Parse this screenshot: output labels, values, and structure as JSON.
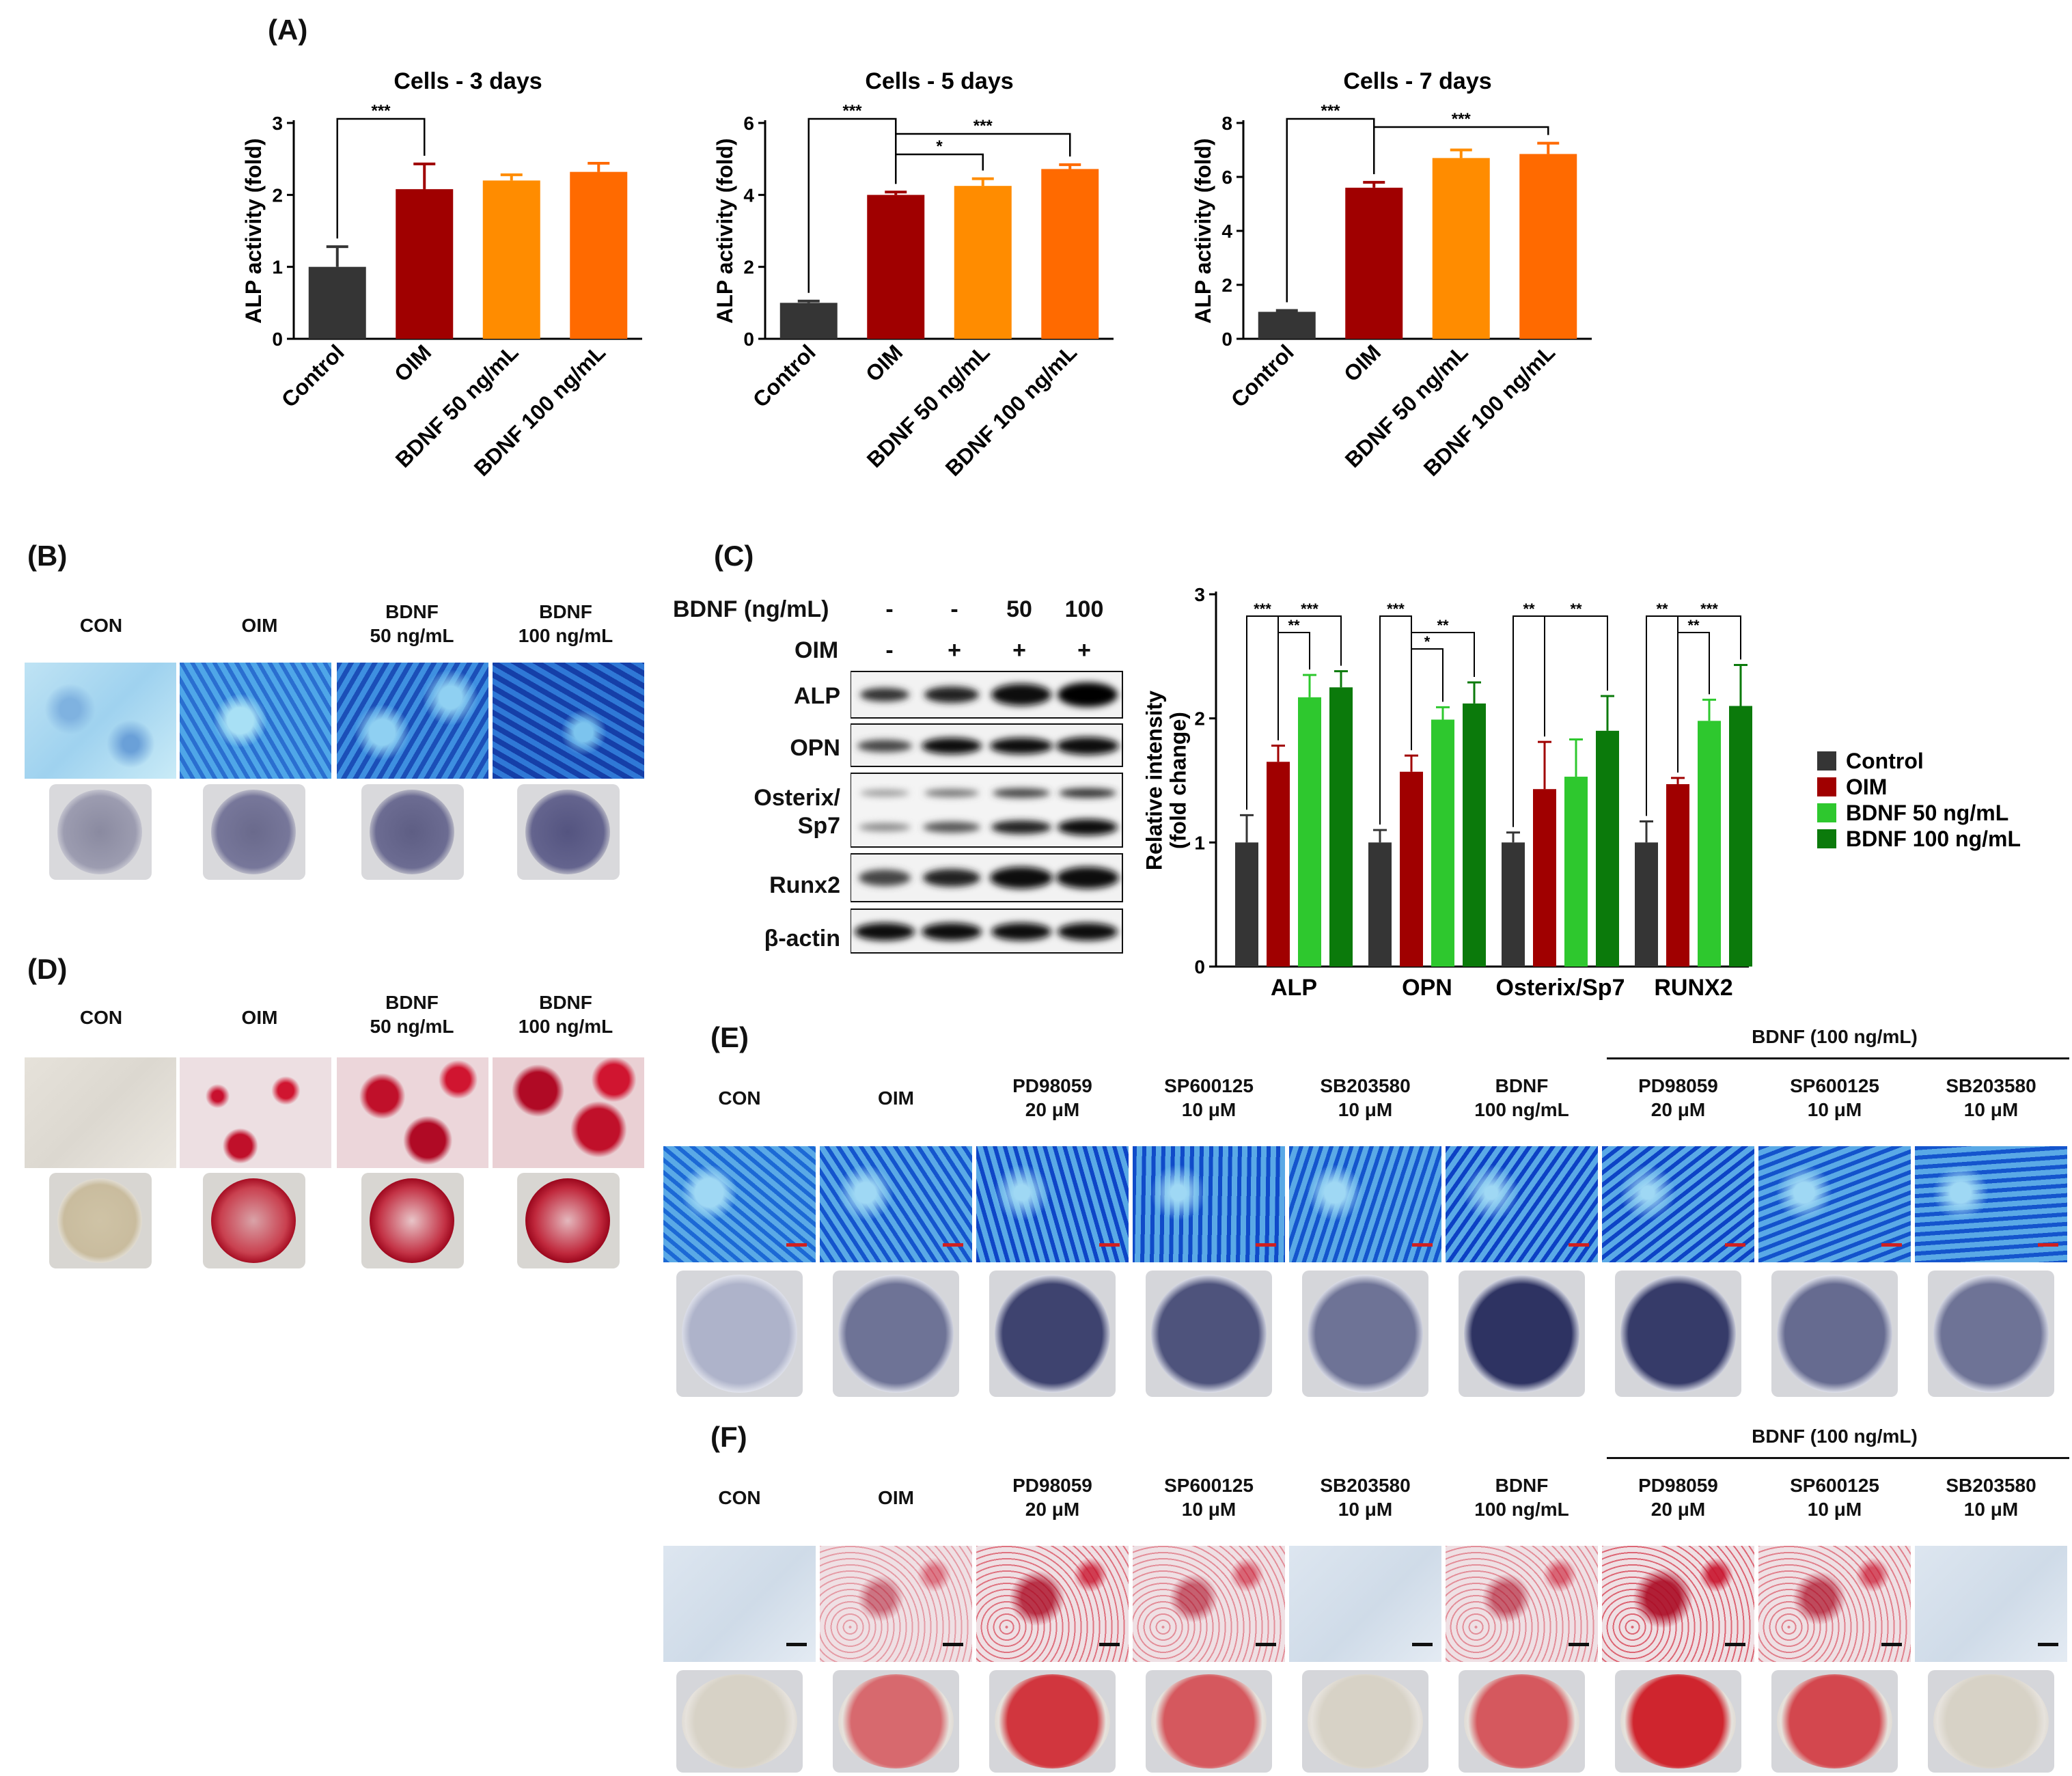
{
  "panel_labels": {
    "A": "(A)",
    "B": "(B)",
    "C": "(C)",
    "D": "(D)",
    "E": "(E)",
    "F": "(F)"
  },
  "colors": {
    "control": "#353535",
    "oim": "#a00000",
    "bdnf50": "#ff8c00",
    "bdnf100": "#ff6a00",
    "wb_bdnf50": "#2ec82e",
    "wb_bdnf100": "#0b7a0b",
    "alp_stain": "#2c5fcf",
    "ars_stain": "#c8102e"
  },
  "chart_data": [
    {
      "type": "bar",
      "title": "Cells - 3 days",
      "ylabel": "ALP activity (fold)",
      "categories": [
        "Control",
        "OIM",
        "BDNF 50 ng/mL",
        "BDNF 100 ng/mL"
      ],
      "values": [
        1.0,
        2.08,
        2.2,
        2.32
      ],
      "errors": [
        0.28,
        0.35,
        0.08,
        0.12
      ],
      "ylim": [
        0,
        3
      ],
      "yticks": [
        "0",
        "1",
        "2",
        "3"
      ],
      "annotations": [
        {
          "text": "***",
          "from": 0,
          "to": 1
        }
      ]
    },
    {
      "type": "bar",
      "title": "Cells - 5 days",
      "ylabel": "ALP activity (fold)",
      "categories": [
        "Control",
        "OIM",
        "BDNF 50 ng/mL",
        "BDNF 100 ng/mL"
      ],
      "values": [
        1.0,
        4.0,
        4.25,
        4.72
      ],
      "errors": [
        0.05,
        0.08,
        0.2,
        0.12
      ],
      "ylim": [
        0,
        6
      ],
      "yticks": [
        "0",
        "2",
        "4",
        "6"
      ],
      "annotations": [
        {
          "text": "***",
          "from": 0,
          "to": 1
        },
        {
          "text": "*",
          "from": 1,
          "to": 2
        },
        {
          "text": "***",
          "from": 1,
          "to": 3
        }
      ]
    },
    {
      "type": "bar",
      "title": "Cells - 7 days",
      "ylabel": "ALP activity (fold)",
      "categories": [
        "Control",
        "OIM",
        "BDNF 50 ng/mL",
        "BDNF 100 ng/mL"
      ],
      "values": [
        1.0,
        5.6,
        6.7,
        6.85
      ],
      "errors": [
        0.05,
        0.2,
        0.3,
        0.4
      ],
      "ylim": [
        0,
        8
      ],
      "yticks": [
        "0",
        "2",
        "4",
        "6",
        "8"
      ],
      "annotations": [
        {
          "text": "***",
          "from": 0,
          "to": 1
        },
        {
          "text": "***",
          "from": 1,
          "to": 3
        }
      ]
    },
    {
      "type": "bar",
      "ylabel": "Relative intensity (fold change)",
      "ylabel_lines": [
        "Relative intensity",
        "(fold change)"
      ],
      "categories": [
        "ALP",
        "OPN",
        "Osterix/Sp7",
        "RUNX2"
      ],
      "series": [
        {
          "name": "Control",
          "values": [
            1.0,
            1.0,
            1.0,
            1.0
          ],
          "errors": [
            0.22,
            0.1,
            0.08,
            0.17
          ]
        },
        {
          "name": "OIM",
          "values": [
            1.65,
            1.57,
            1.43,
            1.47
          ],
          "errors": [
            0.13,
            0.13,
            0.38,
            0.05
          ]
        },
        {
          "name": "BDNF 50 ng/mL",
          "values": [
            2.17,
            1.99,
            1.53,
            1.98
          ],
          "errors": [
            0.18,
            0.1,
            0.3,
            0.17
          ]
        },
        {
          "name": "BDNF 100 ng/mL",
          "values": [
            2.25,
            2.12,
            1.9,
            2.1
          ],
          "errors": [
            0.13,
            0.17,
            0.28,
            0.33
          ]
        }
      ],
      "ylim": [
        0,
        3
      ],
      "yticks": [
        "0",
        "1",
        "2",
        "3"
      ],
      "legend": "right",
      "annotations": [
        {
          "group": 0,
          "text": "***",
          "from": 0,
          "to": 1,
          "level": 0
        },
        {
          "group": 0,
          "text": "**",
          "from": 1,
          "to": 2,
          "level": 1
        },
        {
          "group": 0,
          "text": "***",
          "from": 1,
          "to": 3,
          "level": 0
        },
        {
          "group": 1,
          "text": "***",
          "from": 0,
          "to": 1,
          "level": 0
        },
        {
          "group": 1,
          "text": "*",
          "from": 1,
          "to": 2,
          "level": 2
        },
        {
          "group": 1,
          "text": "**",
          "from": 1,
          "to": 3,
          "level": 1
        },
        {
          "group": 2,
          "text": "**",
          "from": 0,
          "to": 1,
          "level": 0
        },
        {
          "group": 2,
          "text": "**",
          "from": 1,
          "to": 3,
          "level": 0
        },
        {
          "group": 3,
          "text": "**",
          "from": 0,
          "to": 1,
          "level": 0
        },
        {
          "group": 3,
          "text": "**",
          "from": 1,
          "to": 2,
          "level": 1
        },
        {
          "group": 3,
          "text": "***",
          "from": 1,
          "to": 3,
          "level": 0
        }
      ]
    }
  ],
  "panel_b": {
    "labels": [
      [
        "CON"
      ],
      [
        "OIM"
      ],
      [
        "BDNF",
        "50 ng/mL"
      ],
      [
        "BDNF",
        "100 ng/mL"
      ]
    ]
  },
  "panel_d": {
    "labels": [
      [
        "CON"
      ],
      [
        "OIM"
      ],
      [
        "BDNF",
        "50 ng/mL"
      ],
      [
        "BDNF",
        "100 ng/mL"
      ]
    ]
  },
  "panel_c_blot": {
    "treatment_rows": [
      {
        "label": "BDNF (ng/mL)",
        "values": [
          "-",
          "-",
          "50",
          "100"
        ]
      },
      {
        "label": "OIM",
        "values": [
          "-",
          "+",
          "+",
          "+"
        ]
      }
    ],
    "rows": [
      [
        "ALP"
      ],
      [
        "OPN"
      ],
      [
        "Osterix/",
        "Sp7"
      ],
      [
        "Runx2"
      ],
      [
        "β-actin"
      ]
    ]
  },
  "panel_ef": {
    "group_label": "BDNF (100 ng/mL)",
    "labels": [
      [
        "CON"
      ],
      [
        "OIM"
      ],
      [
        "PD98059",
        "20 μM"
      ],
      [
        "SP600125",
        "10 μM"
      ],
      [
        "SB203580",
        "10 μM"
      ],
      [
        "BDNF",
        "100 ng/mL"
      ],
      [
        "PD98059",
        "20 μM"
      ],
      [
        "SP600125",
        "10 μM"
      ],
      [
        "SB203580",
        "10 μM"
      ]
    ]
  }
}
